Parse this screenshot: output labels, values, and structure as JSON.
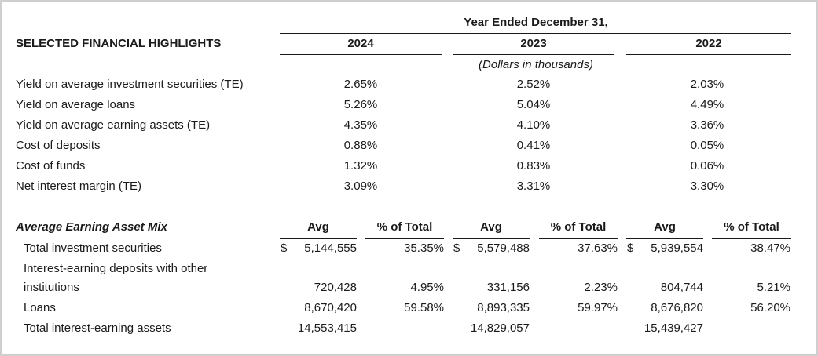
{
  "header": {
    "year_ended": "Year Ended December 31,",
    "section_title": "SELECTED FINANCIAL HIGHLIGHTS",
    "years": [
      "2024",
      "2023",
      "2022"
    ],
    "units_note": "(Dollars in thousands)"
  },
  "highlights": [
    {
      "label": "Yield on average investment securities (TE)",
      "values": [
        "2.65%",
        "2.52%",
        "2.03%"
      ]
    },
    {
      "label": "Yield on average loans",
      "values": [
        "5.26%",
        "5.04%",
        "4.49%"
      ]
    },
    {
      "label": "Yield on average earning assets (TE)",
      "values": [
        "4.35%",
        "4.10%",
        "3.36%"
      ]
    },
    {
      "label": "Cost of deposits",
      "values": [
        "0.88%",
        "0.41%",
        "0.05%"
      ]
    },
    {
      "label": "Cost of funds",
      "values": [
        "1.32%",
        "0.83%",
        "0.06%"
      ]
    },
    {
      "label": "Net interest margin (TE)",
      "values": [
        "3.09%",
        "3.31%",
        "3.30%"
      ]
    }
  ],
  "mix": {
    "title": "Average Earning Asset Mix",
    "col_avg": "Avg",
    "col_pct": "% of Total",
    "currency": "$",
    "rows": [
      {
        "label": "Total investment securities",
        "label_cont": "",
        "avg": [
          "5,144,555",
          "5,579,488",
          "5,939,554"
        ],
        "pct": [
          "35.35%",
          "37.63%",
          "38.47%"
        ],
        "dollar": true
      },
      {
        "label": "Interest-earning deposits with other",
        "label_cont": "institutions",
        "avg": [
          "720,428",
          "331,156",
          "804,744"
        ],
        "pct": [
          "4.95%",
          "2.23%",
          "5.21%"
        ],
        "dollar": false
      },
      {
        "label": "Loans",
        "label_cont": "",
        "avg": [
          "8,670,420",
          "8,893,335",
          "8,676,820"
        ],
        "pct": [
          "59.58%",
          "59.97%",
          "56.20%"
        ],
        "dollar": false
      },
      {
        "label": "Total interest-earning assets",
        "label_cont": "",
        "avg": [
          "14,553,415",
          "14,829,057",
          "15,439,427"
        ],
        "pct": [
          "",
          "",
          ""
        ],
        "dollar": false
      }
    ]
  }
}
